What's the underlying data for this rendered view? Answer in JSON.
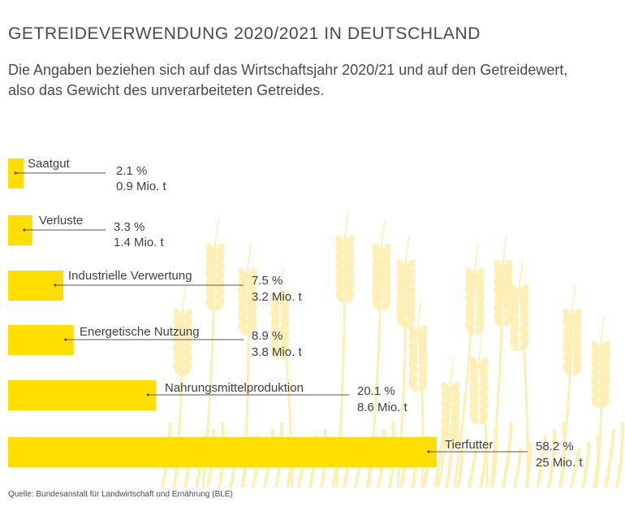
{
  "header": {
    "title": "GETREIDEVERWENDUNG 2020/2021 IN DEUTSCHLAND",
    "subtitle": "Die Angaben beziehen sich auf das Wirtschaftsjahr 2020/21 und auf den Getreidewert, also das Gewicht des unverarbeiteten Getreides."
  },
  "footer": {
    "source": "Quelle: Bundesanstalt für Landwirtschaft und Ernährung (BLE)"
  },
  "colors": {
    "bar": "#ffde00",
    "wheat": "#fdf0b6",
    "line": "#555555",
    "text": "#3f3f3f"
  },
  "chart_data": {
    "type": "bar",
    "orientation": "horizontal",
    "categories": [
      "Saatgut",
      "Verluste",
      "Industrielle Verwertung",
      "Energetische Nutzung",
      "Nahrungsmittelproduktion",
      "Tierfutter"
    ],
    "series": [
      {
        "values": [
          2.1,
          3.3,
          7.5,
          8.9,
          20.1,
          58.2
        ],
        "labels": [
          "2.1 %",
          "3.3 %",
          "7.5 %",
          "8.9 %",
          "20.1 %",
          "58.2 %"
        ]
      },
      {
        "values": [
          0.9,
          1.4,
          3.2,
          3.8,
          8.6,
          25
        ],
        "labels": [
          "0.9 Mio. t",
          "1.4 Mio. t",
          "3.2 Mio. t",
          "3.8 Mio. t",
          "8.6 Mio. t",
          "25 Mio. t"
        ]
      }
    ]
  }
}
